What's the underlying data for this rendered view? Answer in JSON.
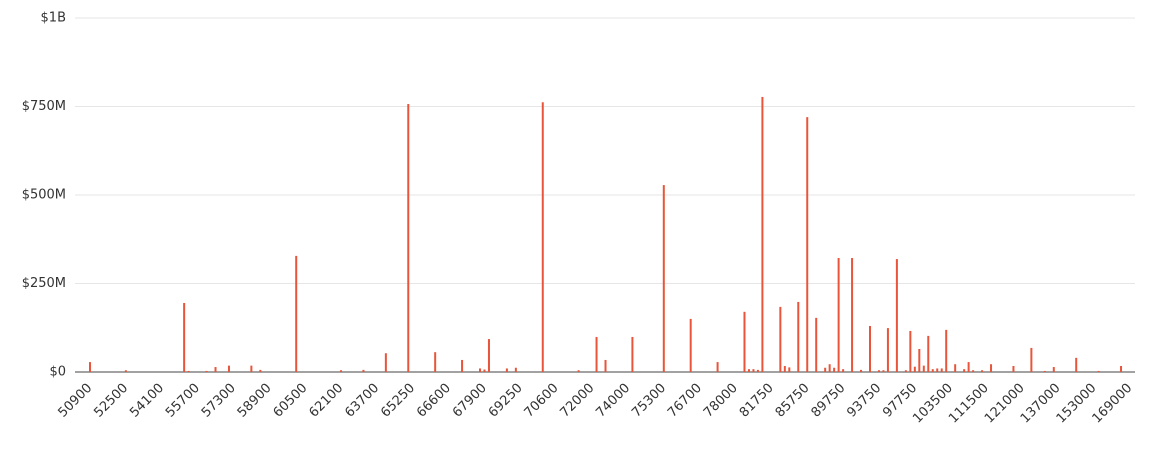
{
  "chart_data": {
    "type": "bar",
    "color": "#e8553a",
    "grid": true,
    "ylim": [
      0,
      1000000000
    ],
    "yticks": [
      {
        "value": 0,
        "label": "$0"
      },
      {
        "value": 250000000,
        "label": "$250M"
      },
      {
        "value": 500000000,
        "label": "$500M"
      },
      {
        "value": 750000000,
        "label": "$750M"
      },
      {
        "value": 1000000000,
        "label": "$1B"
      }
    ],
    "categories": [
      "50900",
      null,
      null,
      null,
      null,
      null,
      null,
      null,
      "52500",
      null,
      null,
      null,
      null,
      null,
      null,
      null,
      "54100",
      null,
      null,
      null,
      null,
      null,
      null,
      null,
      "55700",
      null,
      null,
      null,
      null,
      null,
      null,
      null,
      "57300",
      null,
      null,
      null,
      null,
      null,
      null,
      null,
      "58900",
      null,
      null,
      null,
      null,
      null,
      null,
      null,
      "60500",
      null,
      null,
      null,
      null,
      null,
      null,
      null,
      "62100",
      null,
      null,
      null,
      null,
      null,
      null,
      null,
      "63700",
      null,
      null,
      null,
      null,
      null,
      null,
      null,
      "65250",
      null,
      null,
      null,
      null,
      null,
      null,
      null,
      "66600",
      null,
      null,
      null,
      null,
      null,
      null,
      null,
      "67900",
      null,
      null,
      null,
      null,
      null,
      null,
      null,
      "69250",
      null,
      null,
      null,
      null,
      null,
      null,
      null,
      "70600",
      null,
      null,
      null,
      null,
      null,
      null,
      null,
      "72000",
      null,
      null,
      null,
      null,
      null,
      null,
      null,
      "74000",
      null,
      null,
      null,
      null,
      null,
      null,
      null,
      "75300",
      null,
      null,
      null,
      null,
      null,
      null,
      null,
      "76700",
      null,
      null,
      null,
      null,
      null,
      null,
      null,
      "78000",
      null,
      null,
      null,
      null,
      null,
      null,
      null,
      "81750",
      null,
      null,
      null,
      null,
      null,
      null,
      null,
      "85750",
      null,
      null,
      null,
      null,
      null,
      null,
      null,
      "89750",
      null,
      null,
      null,
      null,
      null,
      null,
      null,
      "93750",
      null,
      null,
      null,
      null,
      null,
      null,
      null,
      "97750",
      null,
      null,
      null,
      null,
      null,
      null,
      null,
      "103500",
      null,
      null,
      null,
      null,
      null,
      null,
      null,
      "111500",
      null,
      null,
      null,
      null,
      null,
      null,
      null,
      "121000",
      null,
      null,
      null,
      null,
      null,
      null,
      null,
      "137000",
      null,
      null,
      null,
      null,
      null,
      null,
      null,
      "153000",
      null,
      null,
      null,
      null,
      null,
      null,
      null,
      "169000"
    ],
    "values": [
      28000000.0,
      0,
      0,
      0,
      0,
      0,
      0,
      0,
      5000000.0,
      0,
      0,
      0,
      0,
      0,
      0,
      0,
      0,
      0,
      0,
      0,
      0,
      195000000.0,
      3000000.0,
      0,
      0,
      0,
      3000000.0,
      0,
      14000000.0,
      0,
      0,
      18000000.0,
      0,
      0,
      0,
      0,
      18000000.0,
      0,
      6000000.0,
      0,
      0,
      0,
      0,
      0,
      0,
      0,
      328000000.0,
      0,
      0,
      0,
      0,
      0,
      0,
      0,
      0,
      0,
      5000000.0,
      0,
      0,
      0,
      0,
      6000000.0,
      0,
      0,
      0,
      0,
      53000000.0,
      0,
      0,
      0,
      0,
      757000000.0,
      0,
      0,
      0,
      0,
      0,
      56000000.0,
      0,
      0,
      0,
      0,
      0,
      34000000.0,
      0,
      0,
      0,
      10000000.0,
      7000000.0,
      93000000.0,
      0,
      0,
      0,
      10000000.0,
      0,
      12000000.0,
      0,
      0,
      0,
      0,
      0,
      762000000.0,
      0,
      0,
      0,
      0,
      0,
      0,
      0,
      5000000.0,
      0,
      0,
      0,
      99000000.0,
      0,
      34000000.0,
      0,
      0,
      0,
      0,
      0,
      99000000.0,
      0,
      0,
      0,
      0,
      0,
      0,
      528000000.0,
      0,
      0,
      0,
      0,
      0,
      150000000.0,
      0,
      0,
      0,
      0,
      0,
      28000000.0,
      0,
      0,
      0,
      0,
      0,
      170000000.0,
      8000000.0,
      8000000.0,
      6000000.0,
      777000000.0,
      0,
      0,
      0,
      184000000.0,
      17000000.0,
      13000000.0,
      0,
      198000000.0,
      0,
      720000000.0,
      0,
      153000000.0,
      0,
      12000000.0,
      22000000.0,
      12000000.0,
      322000000.0,
      8000000.0,
      0,
      322000000.0,
      0,
      6000000.0,
      0,
      130000000.0,
      0,
      5000000.0,
      5000000.0,
      124000000.0,
      0,
      319000000.0,
      0,
      5000000.0,
      116000000.0,
      15000000.0,
      65000000.0,
      18000000.0,
      102000000.0,
      8000000.0,
      10000000.0,
      10000000.0,
      119000000.0,
      0,
      22000000.0,
      0,
      8000000.0,
      28000000.0,
      5000000.0,
      0,
      5000000.0,
      0,
      22000000.0,
      0,
      0,
      0,
      0,
      17000000.0,
      0,
      0,
      0,
      68000000.0,
      0,
      0,
      3000000.0,
      0,
      14000000.0,
      0,
      0,
      0,
      0,
      40000000.0,
      0,
      0,
      0,
      0,
      3000000.0,
      0,
      0,
      0,
      0,
      17000000.0,
      0,
      0
    ]
  }
}
